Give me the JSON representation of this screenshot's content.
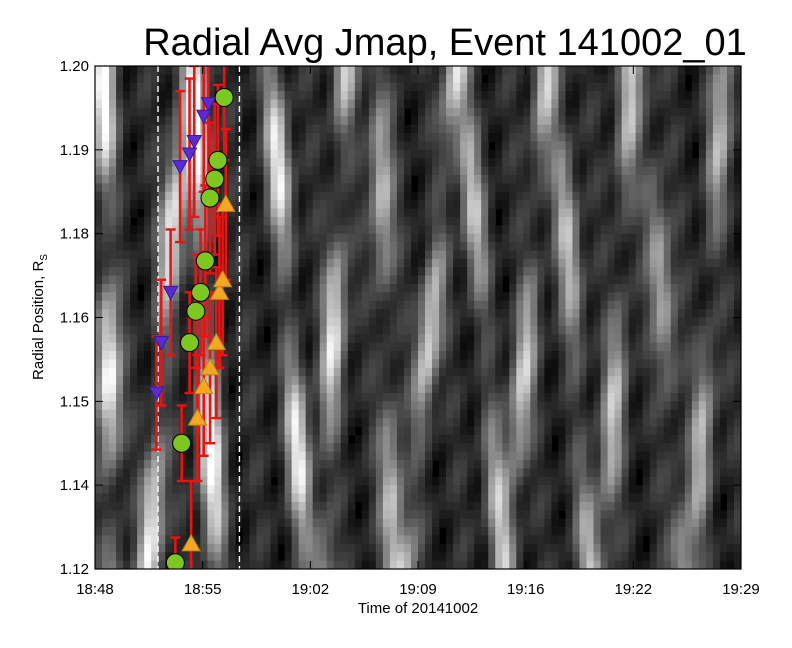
{
  "chart_data": {
    "type": "scatter",
    "title": "Radial Avg Jmap, Event 141002_01",
    "xlabel": "Time of 20141002",
    "ylabel": {
      "main": "Radial Position, R",
      "subscript": "S"
    },
    "xlim": [
      "18:48",
      "19:29"
    ],
    "ylim": [
      1.12,
      1.2
    ],
    "x_ticks": [
      "18:48",
      "18:55",
      "19:02",
      "19:09",
      "19:16",
      "19:22",
      "19:29"
    ],
    "y_ticks": [
      "1.12",
      "1.14",
      "1.15",
      "1.16",
      "1.18",
      "1.19",
      "1.20"
    ],
    "grid": false,
    "background": "grayscale intensity map",
    "reference_lines": [
      {
        "x": "18:52:00",
        "style": "dashed",
        "color": "#ffffff"
      },
      {
        "x": "18:57:10",
        "style": "dashed",
        "color": "#ffffff"
      }
    ],
    "series": [
      {
        "marker": "circle",
        "color": "#7cc81e",
        "edgecolor": "#000000",
        "points": [
          {
            "x": "18:53:06",
            "y": 1.121,
            "err": 0.004
          },
          {
            "x": "18:53:30",
            "y": 1.14,
            "err": 0.006
          },
          {
            "x": "18:54:00",
            "y": 1.156,
            "err": 0.008
          },
          {
            "x": "18:54:24",
            "y": 1.161,
            "err": 0.009
          },
          {
            "x": "18:54:42",
            "y": 1.164,
            "err": 0.01
          },
          {
            "x": "18:55:00",
            "y": 1.169,
            "err": 0.012
          },
          {
            "x": "18:55:18",
            "y": 1.179,
            "err": 0.012
          },
          {
            "x": "18:55:36",
            "y": 1.182,
            "err": 0.012
          },
          {
            "x": "18:55:48",
            "y": 1.185,
            "err": 0.012
          },
          {
            "x": "18:56:12",
            "y": 1.195,
            "err": 0.01
          }
        ]
      },
      {
        "marker": "triangle-up",
        "color": "#f5a623",
        "edgecolor": "#b8860b",
        "points": [
          {
            "x": "18:54:06",
            "y": 1.124,
            "err": 0.01
          },
          {
            "x": "18:54:30",
            "y": 1.144,
            "err": 0.01
          },
          {
            "x": "18:54:54",
            "y": 1.149,
            "err": 0.011
          },
          {
            "x": "18:55:18",
            "y": 1.152,
            "err": 0.012
          },
          {
            "x": "18:55:42",
            "y": 1.156,
            "err": 0.012
          },
          {
            "x": "18:55:54",
            "y": 1.164,
            "err": 0.012
          },
          {
            "x": "18:56:06",
            "y": 1.166,
            "err": 0.012
          },
          {
            "x": "18:56:18",
            "y": 1.178,
            "err": 0.012
          }
        ]
      },
      {
        "marker": "triangle-down",
        "color": "#5a2ad8",
        "edgecolor": "#3a1a98",
        "points": [
          {
            "x": "18:51:54",
            "y": 1.148,
            "err": 0.009
          },
          {
            "x": "18:52:12",
            "y": 1.156,
            "err": 0.01
          },
          {
            "x": "18:52:48",
            "y": 1.164,
            "err": 0.01
          },
          {
            "x": "18:53:24",
            "y": 1.184,
            "err": 0.012
          },
          {
            "x": "18:54:00",
            "y": 1.186,
            "err": 0.012
          },
          {
            "x": "18:54:18",
            "y": 1.188,
            "err": 0.012
          },
          {
            "x": "18:54:54",
            "y": 1.192,
            "err": 0.012
          },
          {
            "x": "18:55:12",
            "y": 1.194,
            "err": 0.012
          }
        ]
      }
    ],
    "errorbar_color": "#ee1111"
  }
}
